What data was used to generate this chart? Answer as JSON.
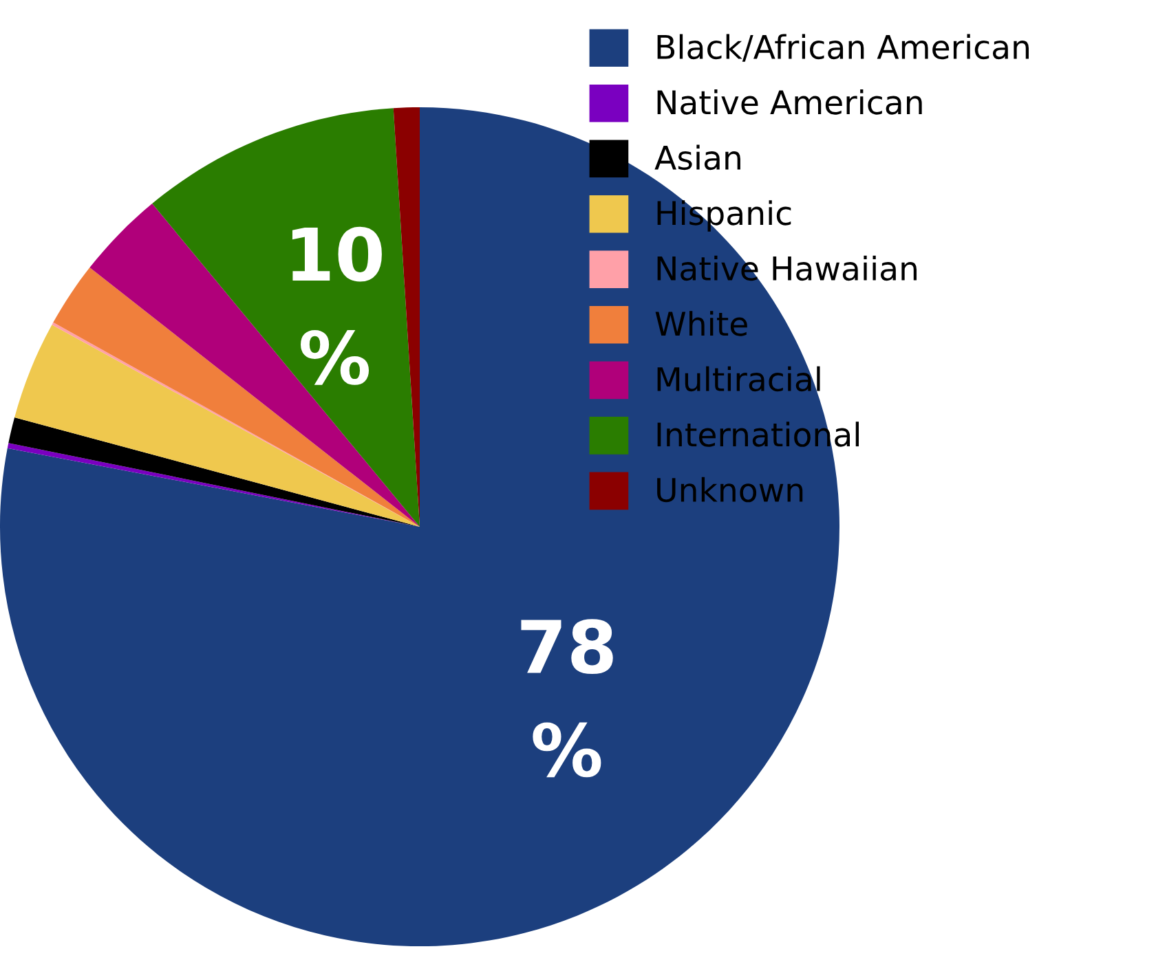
{
  "chart_data": {
    "type": "pie",
    "categories": [
      "Black/African American",
      "Native American",
      "Asian",
      "Hispanic",
      "Native Hawaiian",
      "White",
      "Multiracial",
      "International",
      "Unknown"
    ],
    "values": [
      78,
      0.2,
      1,
      3.8,
      0.1,
      2.5,
      3.4,
      10,
      1
    ],
    "colors": [
      "#1c3f7e",
      "#7a00c0",
      "#000000",
      "#efc84e",
      "#ffa0a8",
      "#f07f3c",
      "#b0007a",
      "#2a7d00",
      "#8b0000"
    ],
    "value_labels": [
      "78\n%",
      null,
      null,
      null,
      null,
      null,
      null,
      "10\n%",
      null
    ],
    "legend": "right"
  }
}
